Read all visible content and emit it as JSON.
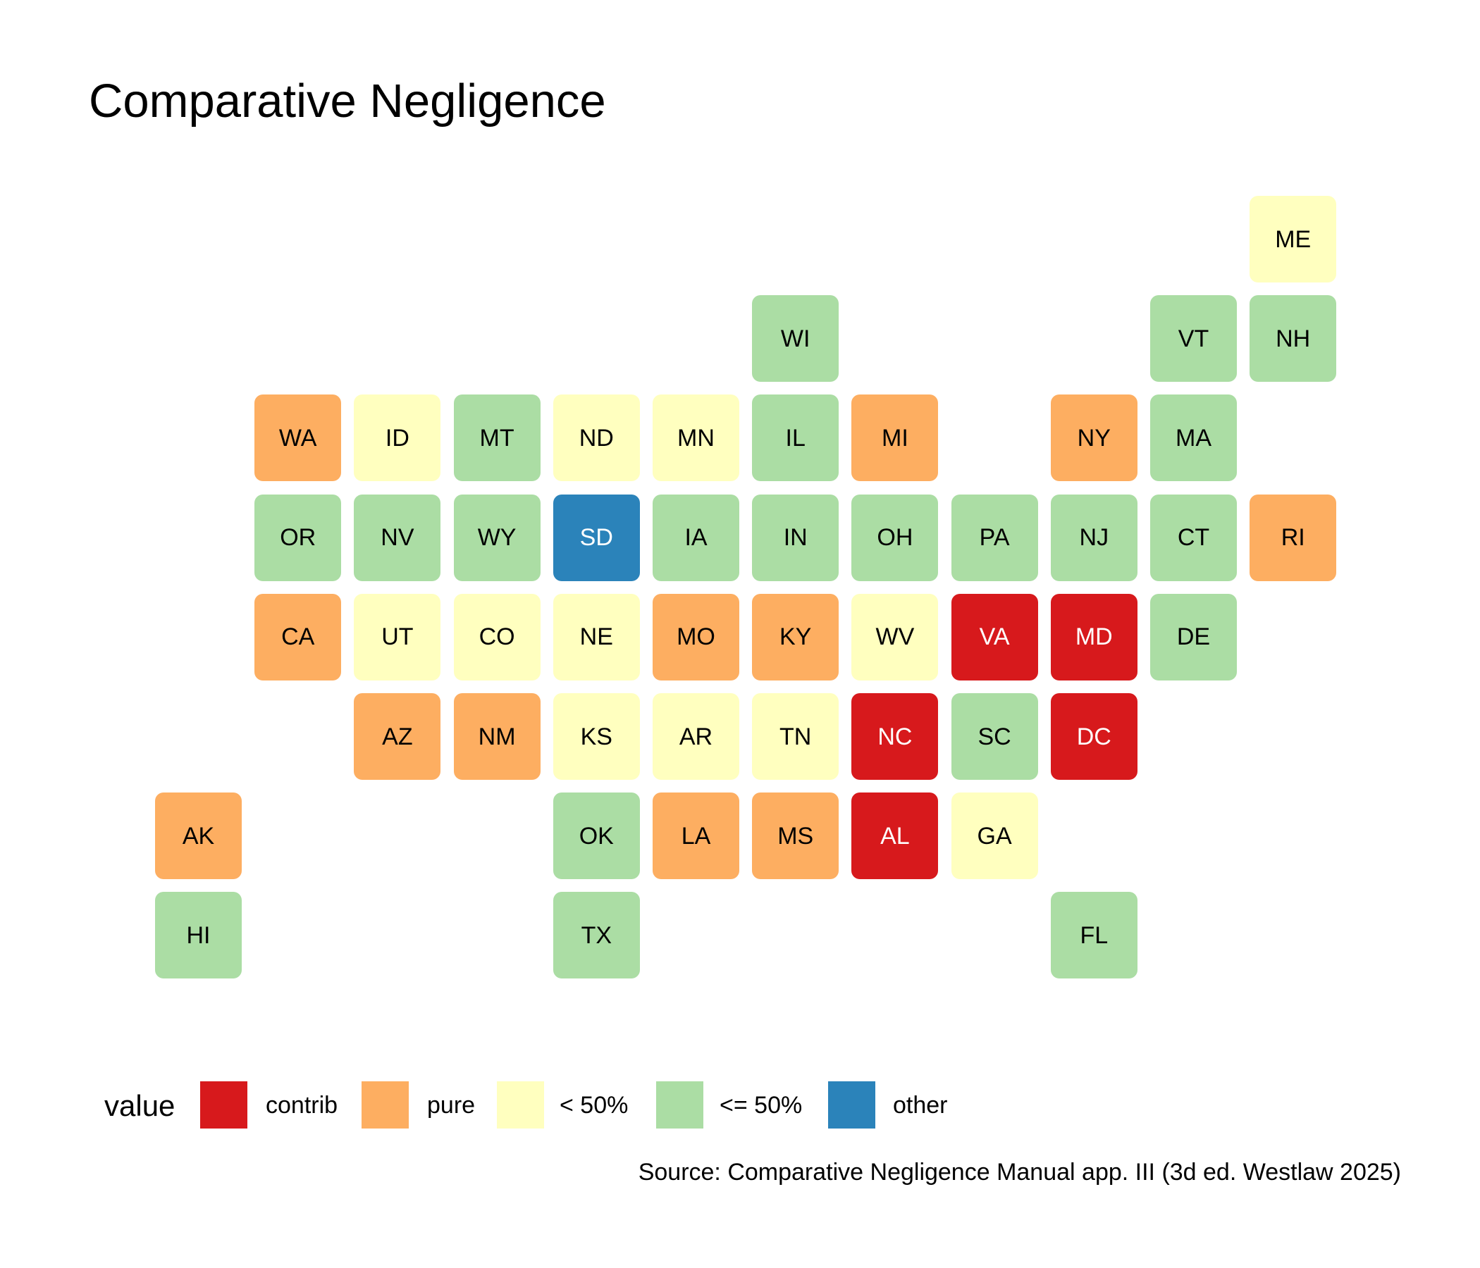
{
  "title": "Comparative Negligence",
  "caption": "Source: Comparative Negligence Manual app. III (3d ed. Westlaw 2025)",
  "legend": {
    "title": "value",
    "items": [
      {
        "key": "contrib",
        "label": "contrib",
        "color": "#d7191c",
        "text_color": "#ffffff"
      },
      {
        "key": "pure",
        "label": "pure",
        "color": "#fdae61",
        "text_color": "#000000"
      },
      {
        "key": "lt50",
        "label": "< 50%",
        "color": "#ffffbf",
        "text_color": "#000000"
      },
      {
        "key": "le50",
        "label": "<= 50%",
        "color": "#abdda4",
        "text_color": "#000000"
      },
      {
        "key": "other",
        "label": "other",
        "color": "#2b83ba",
        "text_color": "#ffffff"
      }
    ]
  },
  "chart_data": {
    "type": "heatmap",
    "title": "Comparative Negligence",
    "legend_title": "value",
    "legend_position": "bottom",
    "categories": [
      "contrib",
      "pure",
      "< 50%",
      "<= 50%",
      "other"
    ],
    "states": [
      {
        "state": "ME",
        "col": 11,
        "row": 0,
        "value": "< 50%"
      },
      {
        "state": "WI",
        "col": 6,
        "row": 1,
        "value": "<= 50%"
      },
      {
        "state": "VT",
        "col": 10,
        "row": 1,
        "value": "<= 50%"
      },
      {
        "state": "NH",
        "col": 11,
        "row": 1,
        "value": "<= 50%"
      },
      {
        "state": "WA",
        "col": 1,
        "row": 2,
        "value": "pure"
      },
      {
        "state": "ID",
        "col": 2,
        "row": 2,
        "value": "< 50%"
      },
      {
        "state": "MT",
        "col": 3,
        "row": 2,
        "value": "<= 50%"
      },
      {
        "state": "ND",
        "col": 4,
        "row": 2,
        "value": "< 50%"
      },
      {
        "state": "MN",
        "col": 5,
        "row": 2,
        "value": "< 50%"
      },
      {
        "state": "IL",
        "col": 6,
        "row": 2,
        "value": "<= 50%"
      },
      {
        "state": "MI",
        "col": 7,
        "row": 2,
        "value": "pure"
      },
      {
        "state": "NY",
        "col": 9,
        "row": 2,
        "value": "pure"
      },
      {
        "state": "MA",
        "col": 10,
        "row": 2,
        "value": "<= 50%"
      },
      {
        "state": "OR",
        "col": 1,
        "row": 3,
        "value": "<= 50%"
      },
      {
        "state": "NV",
        "col": 2,
        "row": 3,
        "value": "<= 50%"
      },
      {
        "state": "WY",
        "col": 3,
        "row": 3,
        "value": "<= 50%"
      },
      {
        "state": "SD",
        "col": 4,
        "row": 3,
        "value": "other"
      },
      {
        "state": "IA",
        "col": 5,
        "row": 3,
        "value": "<= 50%"
      },
      {
        "state": "IN",
        "col": 6,
        "row": 3,
        "value": "<= 50%"
      },
      {
        "state": "OH",
        "col": 7,
        "row": 3,
        "value": "<= 50%"
      },
      {
        "state": "PA",
        "col": 8,
        "row": 3,
        "value": "<= 50%"
      },
      {
        "state": "NJ",
        "col": 9,
        "row": 3,
        "value": "<= 50%"
      },
      {
        "state": "CT",
        "col": 10,
        "row": 3,
        "value": "<= 50%"
      },
      {
        "state": "RI",
        "col": 11,
        "row": 3,
        "value": "pure"
      },
      {
        "state": "CA",
        "col": 1,
        "row": 4,
        "value": "pure"
      },
      {
        "state": "UT",
        "col": 2,
        "row": 4,
        "value": "< 50%"
      },
      {
        "state": "CO",
        "col": 3,
        "row": 4,
        "value": "< 50%"
      },
      {
        "state": "NE",
        "col": 4,
        "row": 4,
        "value": "< 50%"
      },
      {
        "state": "MO",
        "col": 5,
        "row": 4,
        "value": "pure"
      },
      {
        "state": "KY",
        "col": 6,
        "row": 4,
        "value": "pure"
      },
      {
        "state": "WV",
        "col": 7,
        "row": 4,
        "value": "< 50%"
      },
      {
        "state": "VA",
        "col": 8,
        "row": 4,
        "value": "contrib"
      },
      {
        "state": "MD",
        "col": 9,
        "row": 4,
        "value": "contrib"
      },
      {
        "state": "DE",
        "col": 10,
        "row": 4,
        "value": "<= 50%"
      },
      {
        "state": "AZ",
        "col": 2,
        "row": 5,
        "value": "pure"
      },
      {
        "state": "NM",
        "col": 3,
        "row": 5,
        "value": "pure"
      },
      {
        "state": "KS",
        "col": 4,
        "row": 5,
        "value": "< 50%"
      },
      {
        "state": "AR",
        "col": 5,
        "row": 5,
        "value": "< 50%"
      },
      {
        "state": "TN",
        "col": 6,
        "row": 5,
        "value": "< 50%"
      },
      {
        "state": "NC",
        "col": 7,
        "row": 5,
        "value": "contrib"
      },
      {
        "state": "SC",
        "col": 8,
        "row": 5,
        "value": "<= 50%"
      },
      {
        "state": "DC",
        "col": 9,
        "row": 5,
        "value": "contrib"
      },
      {
        "state": "AK",
        "col": 0,
        "row": 6,
        "value": "pure"
      },
      {
        "state": "OK",
        "col": 4,
        "row": 6,
        "value": "<= 50%"
      },
      {
        "state": "LA",
        "col": 5,
        "row": 6,
        "value": "pure"
      },
      {
        "state": "MS",
        "col": 6,
        "row": 6,
        "value": "pure"
      },
      {
        "state": "AL",
        "col": 7,
        "row": 6,
        "value": "contrib"
      },
      {
        "state": "GA",
        "col": 8,
        "row": 6,
        "value": "< 50%"
      },
      {
        "state": "HI",
        "col": 0,
        "row": 7,
        "value": "<= 50%"
      },
      {
        "state": "TX",
        "col": 4,
        "row": 7,
        "value": "<= 50%"
      },
      {
        "state": "FL",
        "col": 9,
        "row": 7,
        "value": "<= 50%"
      }
    ]
  }
}
